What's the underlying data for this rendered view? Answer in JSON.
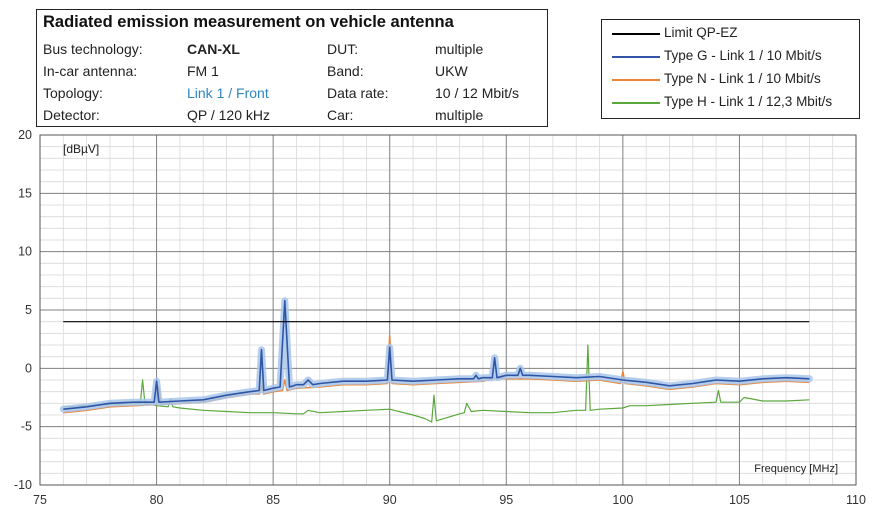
{
  "info": {
    "title": "Radiated emission measurement on vehicle antenna",
    "rows": [
      {
        "label": "Bus technology:",
        "value": "CAN-XL",
        "label2": "DUT:",
        "value2": "multiple"
      },
      {
        "label": "In-car antenna:",
        "value": "FM 1",
        "label2": "Band:",
        "value2": "UKW"
      },
      {
        "label": "Topology:",
        "value": "Link 1 / Front",
        "label2": "Data rate:",
        "value2": "10 / 12 Mbit/s"
      },
      {
        "label": "Detector:",
        "value": "QP / 120 kHz",
        "label2": "Car:",
        "value2": "multiple"
      }
    ]
  },
  "colors": {
    "limit": "#000000",
    "type_g": "#2f56a6",
    "type_g_halo": "#a9c6ea",
    "type_n": "#e8873a",
    "type_h": "#5aa83c",
    "grid_major": "#808080",
    "grid_minor": "#d9d9d9"
  },
  "chart_data": {
    "type": "line",
    "xlabel": "Frequency [MHz]",
    "ylabel": "[dBµV]",
    "xlim": [
      75,
      110
    ],
    "ylim": [
      -10,
      20
    ],
    "x_ticks": [
      75,
      80,
      85,
      90,
      95,
      100,
      105,
      110
    ],
    "y_ticks": [
      -10,
      -5,
      0,
      5,
      10,
      15,
      20
    ],
    "grid": true,
    "legend_position": "top-right",
    "series": [
      {
        "name": "Limit QP-EZ",
        "x": [
          76,
          108
        ],
        "y": [
          4,
          4
        ]
      },
      {
        "name": "Type G - Link 1 / 10 Mbit/s",
        "x": [
          76,
          77,
          78,
          79,
          79.9,
          80,
          80.1,
          81,
          82,
          83,
          84,
          84.4,
          84.5,
          84.6,
          85,
          85.3,
          85.5,
          85.7,
          86,
          86.3,
          86.5,
          86.7,
          87,
          88,
          89,
          89.9,
          90,
          90.1,
          91,
          92,
          93,
          93.6,
          93.7,
          93.8,
          94,
          94.4,
          94.5,
          94.6,
          95,
          95.5,
          95.6,
          95.7,
          96,
          97,
          98,
          99,
          100,
          101,
          102,
          103,
          104,
          105,
          106,
          107,
          108
        ],
        "y": [
          -3.5,
          -3.3,
          -3.0,
          -2.9,
          -2.9,
          -1.1,
          -2.9,
          -2.8,
          -2.7,
          -2.3,
          -2.0,
          -1.9,
          1.6,
          -1.9,
          -1.7,
          -1.6,
          5.8,
          -1.6,
          -1.4,
          -1.4,
          -1.0,
          -1.4,
          -1.3,
          -1.1,
          -1.1,
          -1.0,
          1.8,
          -1.0,
          -1.1,
          -1.0,
          -0.9,
          -0.9,
          -0.6,
          -0.9,
          -0.8,
          -0.8,
          0.9,
          -0.8,
          -0.6,
          -0.6,
          0.0,
          -0.6,
          -0.6,
          -0.7,
          -0.8,
          -0.7,
          -1.0,
          -1.2,
          -1.5,
          -1.3,
          -1.0,
          -1.1,
          -0.9,
          -0.8,
          -0.9
        ]
      },
      {
        "name": "Type N - Link 1 / 10 Mbit/s",
        "x": [
          76,
          77,
          78,
          79,
          80,
          80.1,
          80.2,
          81,
          82,
          83,
          84,
          84.4,
          84.5,
          84.6,
          85,
          85.4,
          85.5,
          85.6,
          86,
          87,
          88,
          89,
          89.9,
          90,
          90.1,
          91,
          92,
          93,
          94,
          94.5,
          95,
          96,
          97,
          98,
          99,
          99.9,
          100,
          100.1,
          101,
          102,
          103,
          104,
          105,
          106,
          107,
          108
        ],
        "y": [
          -3.8,
          -3.6,
          -3.3,
          -3.2,
          -3.1,
          -1.6,
          -3.1,
          -3.0,
          -2.9,
          -2.5,
          -2.2,
          -2.2,
          -1.5,
          -2.2,
          -2.0,
          -1.9,
          -1.0,
          -1.9,
          -1.7,
          -1.6,
          -1.4,
          -1.4,
          -1.3,
          2.8,
          -1.3,
          -1.4,
          -1.3,
          -1.2,
          -1.1,
          -0.8,
          -0.9,
          -0.9,
          -1.0,
          -1.1,
          -1.0,
          -1.3,
          -0.3,
          -1.3,
          -1.5,
          -1.8,
          -1.6,
          -1.3,
          -1.4,
          -1.2,
          -1.1,
          -1.2
        ]
      },
      {
        "name": "Type H - Link 1 / 12,3 Mbit/s",
        "x": [
          76,
          77,
          78,
          79,
          79.3,
          79.4,
          79.5,
          80,
          80.5,
          80.6,
          80.7,
          81,
          82,
          83,
          84,
          85,
          86,
          86.3,
          86.5,
          87,
          88,
          89,
          90,
          91,
          91.5,
          91.8,
          91.9,
          92,
          92.5,
          93,
          93.2,
          93.3,
          93.5,
          94,
          95,
          96,
          97,
          98,
          98.4,
          98.5,
          98.6,
          99,
          100,
          100.3,
          101,
          102,
          103,
          104,
          104.1,
          104.2,
          105,
          105.2,
          106,
          107,
          108
        ],
        "y": [
          -3.3,
          -3.2,
          -3.1,
          -3.0,
          -3.0,
          -1.0,
          -3.0,
          -3.2,
          -3.3,
          -2.6,
          -3.3,
          -3.4,
          -3.6,
          -3.7,
          -3.8,
          -3.8,
          -3.9,
          -3.9,
          -3.6,
          -3.8,
          -3.7,
          -3.6,
          -3.5,
          -4.0,
          -4.3,
          -4.6,
          -2.3,
          -4.5,
          -4.2,
          -3.9,
          -3.8,
          -3.0,
          -3.7,
          -3.6,
          -3.7,
          -3.8,
          -3.8,
          -3.6,
          -3.6,
          2.0,
          -3.6,
          -3.5,
          -3.4,
          -3.2,
          -3.2,
          -3.1,
          -3.0,
          -2.9,
          -1.9,
          -2.9,
          -2.9,
          -2.5,
          -2.8,
          -2.8,
          -2.7
        ]
      }
    ]
  }
}
